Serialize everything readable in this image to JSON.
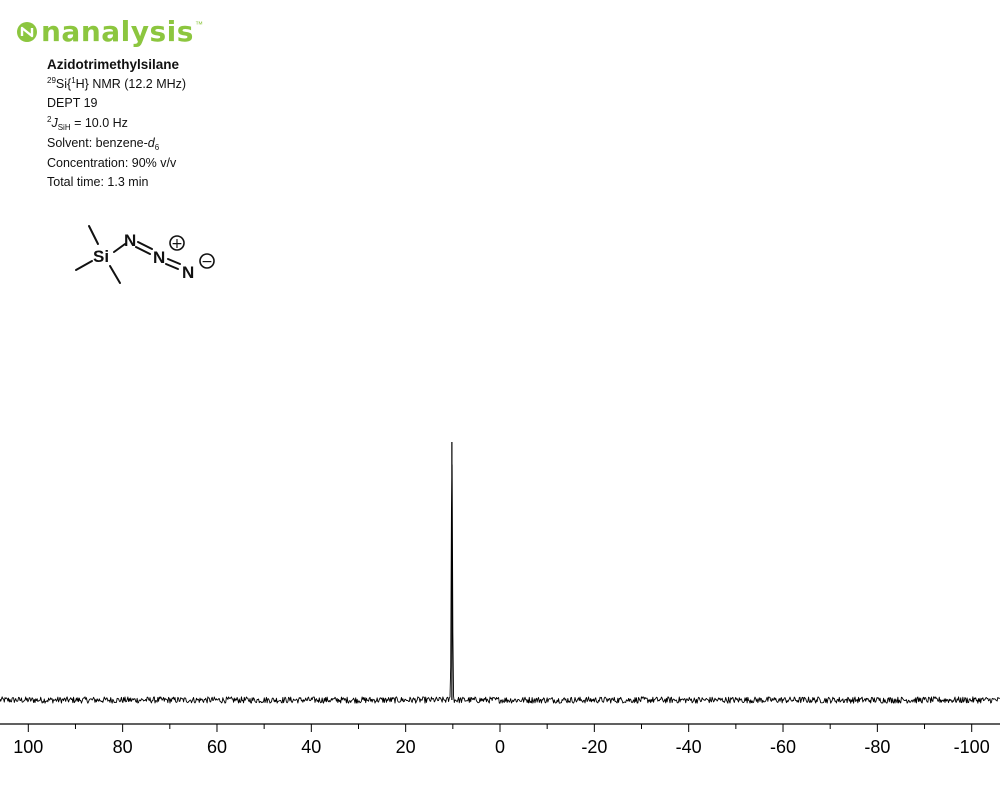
{
  "header": {
    "brand_name": "nanalysis",
    "brand_tm": "™",
    "brand_color": "#8cc63f",
    "brand_icon": "nanalysis-logo-icon"
  },
  "info": {
    "compound": "Azidotrimethylsilane",
    "experiment_sup": "29",
    "experiment_a": "Si{",
    "experiment_sup2": "1",
    "experiment_b": "H} NMR (12.2 MHz)",
    "sequence": "DEPT 19",
    "coupling_sup": "2",
    "coupling_j": "J",
    "coupling_sub": "SiH",
    "coupling_value": " = 10.0 Hz",
    "solvent_label": "Solvent: benzene-",
    "solvent_d": "d",
    "solvent_sub": "6",
    "concentration": "Concentration: 90% v/v",
    "total_time": "Total time: 1.3 min"
  },
  "molecule": {
    "si": "Si",
    "n1": "N",
    "n2": "N",
    "n3": "N",
    "plus": "+",
    "minus": "−"
  },
  "chart_data": {
    "type": "line",
    "title": "",
    "xlabel": "",
    "ylabel": "",
    "xlim": [
      106,
      -106
    ],
    "x_reversed": true,
    "ylim": [
      0,
      1
    ],
    "x_ticks": [
      100,
      80,
      60,
      40,
      20,
      0,
      -20,
      -40,
      -60,
      -80,
      -100
    ],
    "x_tick_labels": [
      "100",
      "80",
      "60",
      "40",
      "20",
      "0",
      "-20",
      "-40",
      "-60",
      "-80",
      "-100"
    ],
    "minor_tick_step": 10,
    "baseline": 0.03,
    "noise_amplitude": 0.012,
    "peaks": [
      {
        "ppm": 10.2,
        "height": 1.0,
        "width_ppm": 0.25
      }
    ],
    "grid": false,
    "legend": "none",
    "line_color": "#000000"
  }
}
